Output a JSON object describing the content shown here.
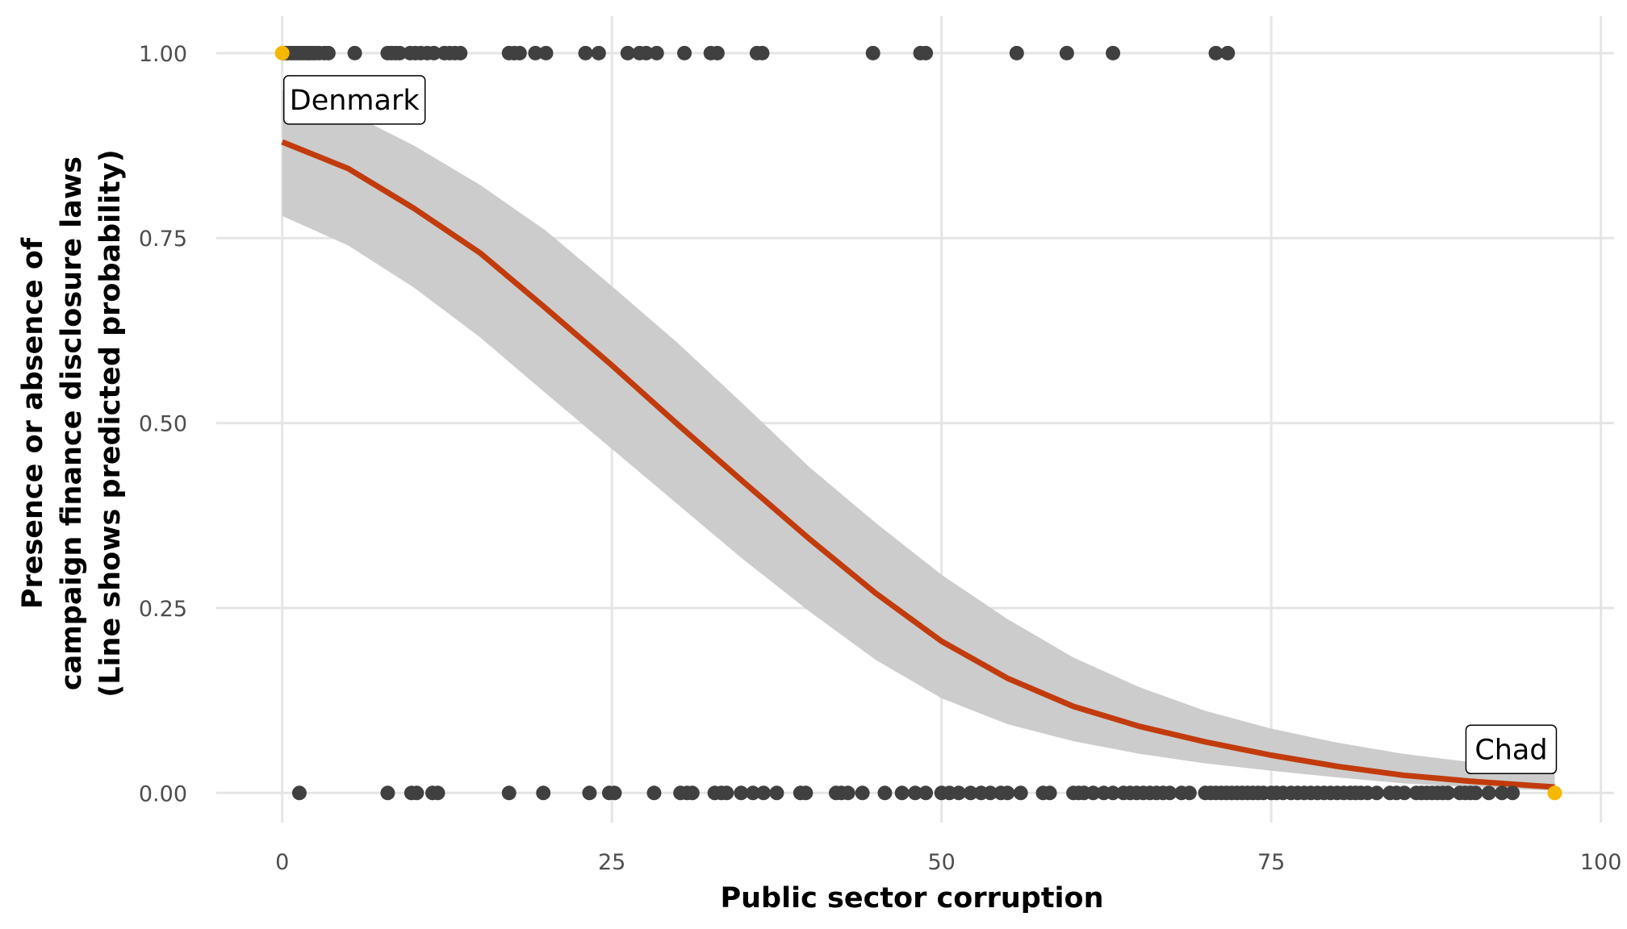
{
  "chart_data": {
    "type": "scatter",
    "xlabel": "Public sector corruption",
    "ylabel_lines": [
      "Presence or absence of",
      "campaign finance disclosure laws",
      "(Line shows predicted probability)"
    ],
    "xlim": [
      -5,
      101
    ],
    "ylim": [
      -0.04,
      1.05
    ],
    "x_ticks": [
      0,
      25,
      50,
      75,
      100
    ],
    "x_tick_labels": [
      "0",
      "25",
      "50",
      "75",
      "100"
    ],
    "y_ticks": [
      0,
      0.25,
      0.5,
      0.75,
      1
    ],
    "y_tick_labels": [
      "0.00",
      "0.25",
      "0.50",
      "0.75",
      "1.00"
    ],
    "grid": true,
    "colors": {
      "points": "#404040",
      "highlight": "#f5b700",
      "line": "#c23b0c",
      "ribbon": "#cccccc",
      "grid": "#e5e5e5"
    },
    "points_laws_1": [
      0.1,
      0.3,
      0.5,
      0.7,
      0.9,
      1.1,
      1.3,
      1.5,
      1.7,
      1.9,
      2.1,
      2.3,
      2.5,
      2.8,
      3.2,
      3.5,
      5.5,
      8.0,
      8.3,
      8.6,
      8.9,
      9.7,
      10.1,
      10.5,
      11.0,
      11.5,
      12.3,
      12.7,
      13.1,
      13.5,
      17.2,
      17.6,
      18.0,
      19.2,
      20.0,
      23.0,
      24.0,
      26.2,
      27.1,
      27.6,
      28.4,
      30.5,
      32.5,
      33.0,
      36.0,
      36.4,
      44.8,
      48.4,
      48.8,
      55.7,
      59.5,
      63.0,
      70.8,
      71.7
    ],
    "points_laws_0": [
      1.3,
      8.0,
      9.8,
      10.2,
      11.4,
      11.8,
      17.2,
      19.8,
      23.3,
      24.8,
      25.2,
      28.2,
      30.2,
      30.7,
      31.1,
      32.8,
      33.3,
      33.7,
      34.8,
      35.7,
      36.5,
      37.5,
      39.3,
      39.7,
      42.0,
      42.4,
      42.9,
      44.0,
      45.7,
      47.0,
      48.0,
      48.8,
      50.0,
      50.6,
      51.3,
      52.2,
      53.0,
      53.7,
      54.5,
      55.0,
      56.0,
      57.7,
      58.2,
      60.0,
      60.4,
      60.8,
      61.5,
      62.3,
      63.0,
      63.8,
      64.3,
      64.8,
      65.3,
      65.8,
      66.3,
      66.8,
      67.3,
      68.2,
      68.8,
      70.0,
      70.4,
      70.8,
      71.2,
      71.6,
      72.0,
      72.4,
      72.8,
      73.2,
      73.6,
      74.0,
      74.4,
      75.0,
      75.4,
      75.9,
      76.5,
      77.0,
      77.5,
      78.0,
      78.5,
      79.0,
      79.5,
      80.0,
      80.5,
      81.0,
      81.4,
      81.8,
      82.3,
      83.0,
      84.0,
      84.5,
      85.1,
      86.0,
      86.4,
      86.8,
      87.2,
      87.6,
      88.0,
      88.4,
      89.3,
      89.7,
      90.1,
      90.5,
      91.5,
      92.5,
      93.3
    ],
    "highlighted": [
      {
        "label": "Denmark",
        "x": 0,
        "y": 1
      },
      {
        "label": "Chad",
        "x": 96.5,
        "y": 0
      }
    ],
    "fitted_line": {
      "x": [
        0,
        5,
        10,
        15,
        20,
        25,
        30,
        35,
        40,
        45,
        50,
        55,
        60,
        65,
        70,
        75,
        80,
        85,
        90,
        96.5
      ],
      "y": [
        0.88,
        0.844,
        0.79,
        0.73,
        0.655,
        0.578,
        0.498,
        0.42,
        0.343,
        0.27,
        0.205,
        0.155,
        0.117,
        0.09,
        0.069,
        0.051,
        0.036,
        0.024,
        0.016,
        0.008
      ]
    },
    "ci_band": {
      "x": [
        0,
        5,
        10,
        15,
        20,
        25,
        30,
        35,
        40,
        45,
        50,
        55,
        60,
        65,
        70,
        75,
        80,
        85,
        90,
        96.5
      ],
      "lower": [
        0.78,
        0.74,
        0.683,
        0.616,
        0.54,
        0.465,
        0.39,
        0.315,
        0.245,
        0.18,
        0.128,
        0.093,
        0.07,
        0.053,
        0.04,
        0.03,
        0.021,
        0.013,
        0.008,
        0.003
      ],
      "upper": [
        0.95,
        0.92,
        0.875,
        0.822,
        0.76,
        0.685,
        0.608,
        0.525,
        0.44,
        0.365,
        0.295,
        0.235,
        0.183,
        0.143,
        0.111,
        0.087,
        0.068,
        0.053,
        0.042,
        0.03
      ]
    }
  }
}
